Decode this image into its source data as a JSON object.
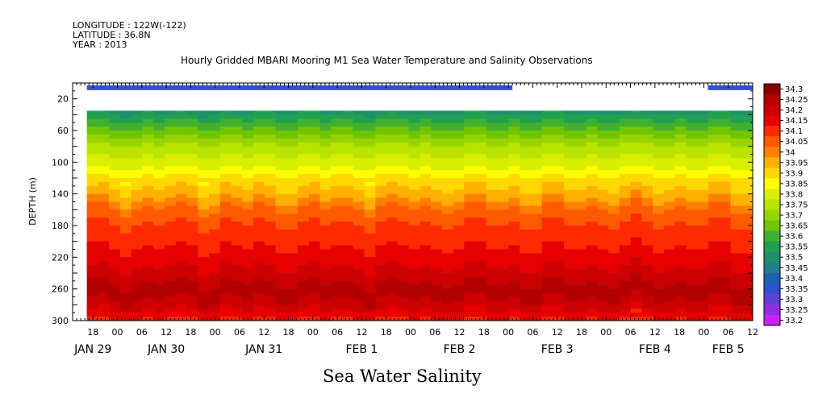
{
  "header": {
    "longitude": "LONGITUDE : 122W(-122)",
    "latitude": "LATITUDE : 36.8N",
    "year": "YEAR : 2013"
  },
  "chart_data": {
    "type": "heatmap",
    "title": "Hourly Gridded MBARI Mooring M1 Sea Water Temperature and Salinity Observations",
    "xlabel": "",
    "ylabel": "DEPTH (m)",
    "caption": "Sea Water Salinity",
    "x_axis": {
      "range_hours": [
        -11,
        156
      ],
      "hour_ticks": [
        "18",
        "00",
        "06",
        "12",
        "18",
        "00",
        "06",
        "12",
        "18",
        "00",
        "06",
        "12",
        "18",
        "00",
        "06",
        "12",
        "18",
        "00",
        "06",
        "12",
        "18",
        "00",
        "06",
        "12",
        "18",
        "00",
        "06",
        "12"
      ],
      "day_labels": [
        "JAN 29",
        "JAN 30",
        "JAN 31",
        "FEB  1",
        "FEB  2",
        "FEB  3",
        "FEB  4",
        "FEB  5"
      ]
    },
    "y_axis": {
      "range": [
        0,
        300
      ],
      "inverted": true,
      "ticks": [
        20,
        60,
        100,
        140,
        180,
        220,
        260,
        300
      ]
    },
    "colorbar": {
      "levels": [
        "34.3",
        "34.25",
        "34.2",
        "34.15",
        "34.1",
        "34.05",
        "34",
        "33.95",
        "33.9",
        "33.85",
        "33.8",
        "33.75",
        "33.7",
        "33.65",
        "33.6",
        "33.55",
        "33.5",
        "33.45",
        "33.4",
        "33.35",
        "33.3",
        "33.25",
        "33.2"
      ],
      "colors": [
        "#8b0000",
        "#b30000",
        "#cc0000",
        "#e60000",
        "#ff2a00",
        "#ff5a00",
        "#ff8000",
        "#ffb000",
        "#ffd800",
        "#ffff00",
        "#d8f000",
        "#b8e400",
        "#98d400",
        "#70c400",
        "#40b030",
        "#20a050",
        "#209068",
        "#208088",
        "#2060b0",
        "#3050d0",
        "#6040d8",
        "#9030e0",
        "#cc20ff"
      ]
    },
    "profile": [
      {
        "depth": 10,
        "salinity": 33.35
      },
      {
        "depth": 40,
        "salinity": 33.55
      },
      {
        "depth": 60,
        "salinity": 33.65
      },
      {
        "depth": 80,
        "salinity": 33.75
      },
      {
        "depth": 100,
        "salinity": 33.8
      },
      {
        "depth": 120,
        "salinity": 33.9
      },
      {
        "depth": 140,
        "salinity": 33.95
      },
      {
        "depth": 160,
        "salinity": 34.05
      },
      {
        "depth": 190,
        "salinity": 34.1
      },
      {
        "depth": 220,
        "salinity": 34.15
      },
      {
        "depth": 240,
        "salinity": 34.2
      },
      {
        "depth": 260,
        "salinity": 34.25
      },
      {
        "depth": 280,
        "salinity": 34.2
      },
      {
        "depth": 300,
        "salinity": 34.1
      }
    ],
    "surface_gap_hours": [
      144,
      158
    ]
  }
}
